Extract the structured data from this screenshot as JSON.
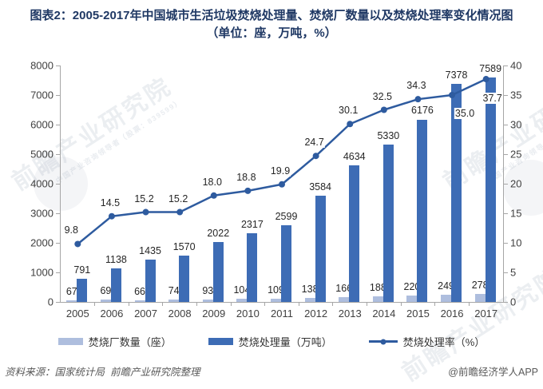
{
  "title": {
    "line1": "图表2：2005-2017年中国城市生活垃圾焚烧处理量、焚烧厂数量以及焚烧处理率变化情况图",
    "line2": "（单位：座，万吨，%）"
  },
  "watermark": {
    "text": "前瞻产业研究院",
    "subtext": "中国产业咨询领导者（股票：839599）"
  },
  "footer": {
    "source": "资料来源：国家统计局  前瞻产业研究院整理",
    "brand": "@前瞻经济学人APP"
  },
  "colors": {
    "title": "#1f3864",
    "bar_light": "#aebede",
    "bar_dark": "#3d6cb5",
    "line": "#2e5b9f",
    "axis": "#a6a6a6",
    "text": "#404040",
    "label_text": "#262626",
    "footer": "#595959"
  },
  "chart_data": {
    "type": "combo",
    "title": "图表2：2005-2017年中国城市生活垃圾焚烧处理量、焚烧厂数量以及焚烧处理率变化情况图（单位：座，万吨，%）",
    "categories": [
      "2005",
      "2006",
      "2007",
      "2008",
      "2009",
      "2010",
      "2011",
      "2012",
      "2013",
      "2014",
      "2015",
      "2016",
      "2017"
    ],
    "series": [
      {
        "name": "焚烧厂数量（座）",
        "type": "bar",
        "axis": "left",
        "color": "#aebede",
        "values": [
          67,
          69,
          66,
          74,
          93,
          104,
          109,
          138,
          166,
          188,
          220,
          249,
          278
        ],
        "labels": [
          "67",
          "69",
          "66",
          "74",
          "93",
          "104",
          "109",
          "138",
          "166",
          "188",
          "220",
          "249",
          "278"
        ]
      },
      {
        "name": "焚烧处理量（万吨）",
        "type": "bar",
        "axis": "left",
        "color": "#3d6cb5",
        "values": [
          791,
          1138,
          1435,
          1570,
          2022,
          2317,
          2599,
          3584,
          4634,
          5330,
          6176,
          7378,
          7589
        ],
        "labels": [
          "791",
          "1138",
          "1435",
          "1570",
          "2022",
          "2317",
          "2599",
          "3584",
          "4634",
          "5330",
          "6176",
          "7378",
          "7589"
        ]
      },
      {
        "name": "焚烧处理率（%）",
        "type": "line",
        "axis": "right",
        "color": "#2e5b9f",
        "values": [
          9.8,
          14.5,
          15.2,
          15.2,
          18.0,
          18.8,
          19.9,
          24.7,
          30.1,
          32.5,
          34.3,
          35.0,
          37.7
        ],
        "labels": [
          "9.8",
          "14.5",
          "15.2",
          "15.2",
          "18.0",
          "18.8",
          "19.9",
          "24.7",
          "30.1",
          "32.5",
          "34.3",
          "35.0",
          "37.7"
        ]
      }
    ],
    "left_axis": {
      "min": 0,
      "max": 8000,
      "step": 1000,
      "ticks": [
        "0",
        "1000",
        "2000",
        "3000",
        "4000",
        "5000",
        "6000",
        "7000",
        "8000"
      ]
    },
    "right_axis": {
      "min": 0,
      "max": 40,
      "step": 5,
      "ticks": [
        "0",
        "5",
        "10",
        "15",
        "20",
        "25",
        "30",
        "35",
        "40"
      ]
    },
    "xlabel": "",
    "ylabel": "",
    "grid": false,
    "legend_position": "bottom"
  }
}
